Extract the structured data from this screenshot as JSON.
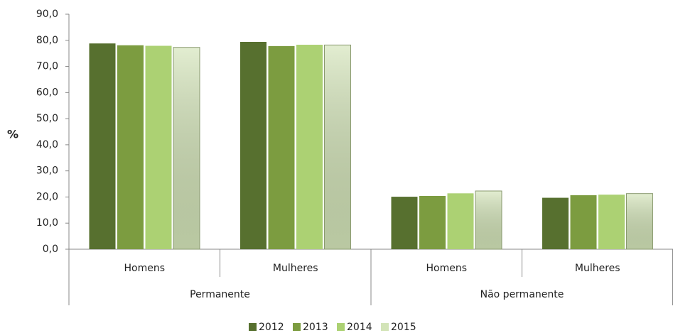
{
  "chart_data": {
    "type": "bar",
    "y_label": "%",
    "category_groups": [
      {
        "name": "Permanente",
        "categories": [
          "Homens",
          "Mulheres"
        ]
      },
      {
        "name": "Não permanente",
        "categories": [
          "Homens",
          "Mulheres"
        ]
      }
    ],
    "series": [
      {
        "name": "2012",
        "color": "#57702f",
        "values": [
          78.8,
          79.4,
          20.1,
          19.7
        ]
      },
      {
        "name": "2013",
        "color": "#7c9c40",
        "values": [
          78.1,
          77.8,
          20.4,
          20.7
        ]
      },
      {
        "name": "2014",
        "color": "#acd173",
        "values": [
          77.9,
          78.3,
          21.4,
          20.9
        ]
      },
      {
        "name": "2015",
        "color": "#d3e4b8",
        "values": [
          77.3,
          78.2,
          22.3,
          21.3
        ]
      }
    ],
    "ylim": [
      0,
      90
    ],
    "yticks": [
      {
        "value": 0,
        "label": "0,0"
      },
      {
        "value": 10,
        "label": "10,0"
      },
      {
        "value": 20,
        "label": "20,0"
      },
      {
        "value": 30,
        "label": "30,0"
      },
      {
        "value": 40,
        "label": "40,0"
      },
      {
        "value": 50,
        "label": "50,0"
      },
      {
        "value": 60,
        "label": "60,0"
      },
      {
        "value": 70,
        "label": "70,0"
      },
      {
        "value": 80,
        "label": "80,0"
      },
      {
        "value": 90,
        "label": "90,0"
      }
    ],
    "grid": false,
    "legend": "bottom"
  }
}
